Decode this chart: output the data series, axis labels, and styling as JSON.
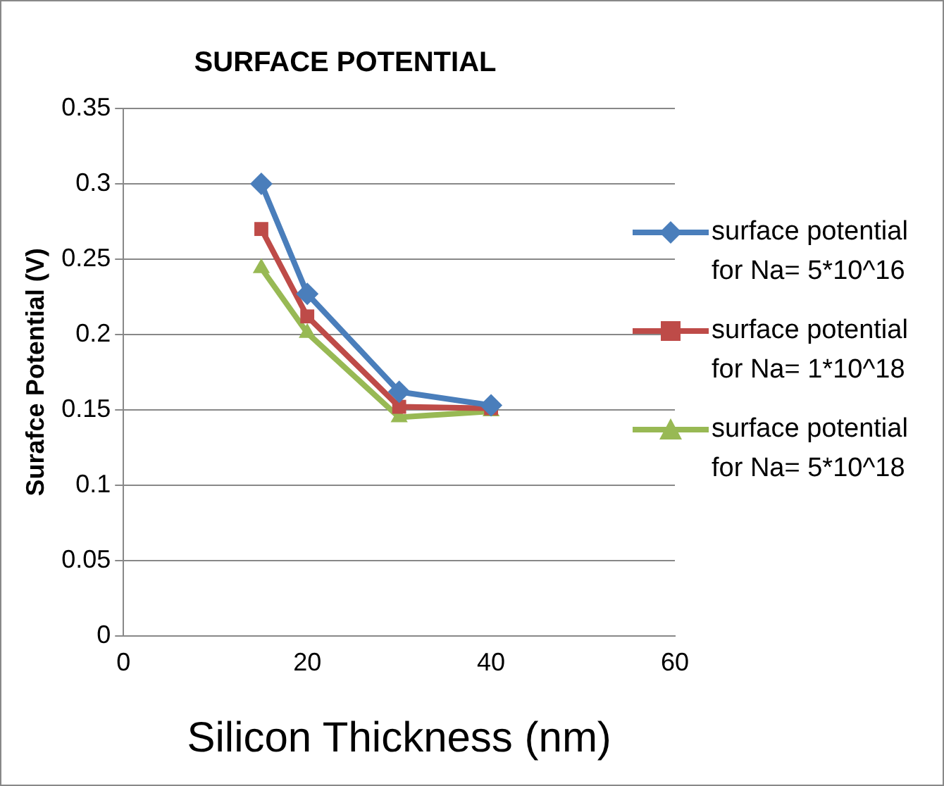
{
  "chart_data": {
    "type": "line",
    "title": "SURFACE POTENTIAL",
    "xlabel": "Silicon Thickness (nm)",
    "ylabel": "Surafce Potential (V)",
    "x": [
      15,
      20,
      30,
      40
    ],
    "series": [
      {
        "name": "surface potential for Na= 5*10^16",
        "color": "#4a7ebb",
        "marker": "diamond",
        "values": [
          0.3,
          0.227,
          0.162,
          0.153
        ]
      },
      {
        "name": "surface potential for Na= 1*10^18",
        "color": "#be4b48",
        "marker": "square",
        "values": [
          0.27,
          0.212,
          0.152,
          0.151
        ]
      },
      {
        "name": "surface potential for Na= 5*10^18",
        "color": "#98b954",
        "marker": "triangle",
        "values": [
          0.244,
          0.201,
          0.145,
          0.149
        ]
      }
    ],
    "xlim": [
      0,
      60
    ],
    "xticks": [
      0,
      20,
      40,
      60
    ],
    "ylim": [
      0,
      0.35
    ],
    "yticks": [
      0,
      0.05,
      0.1,
      0.15,
      0.2,
      0.25,
      0.3,
      0.35
    ],
    "grid": "y",
    "legend": "right"
  }
}
